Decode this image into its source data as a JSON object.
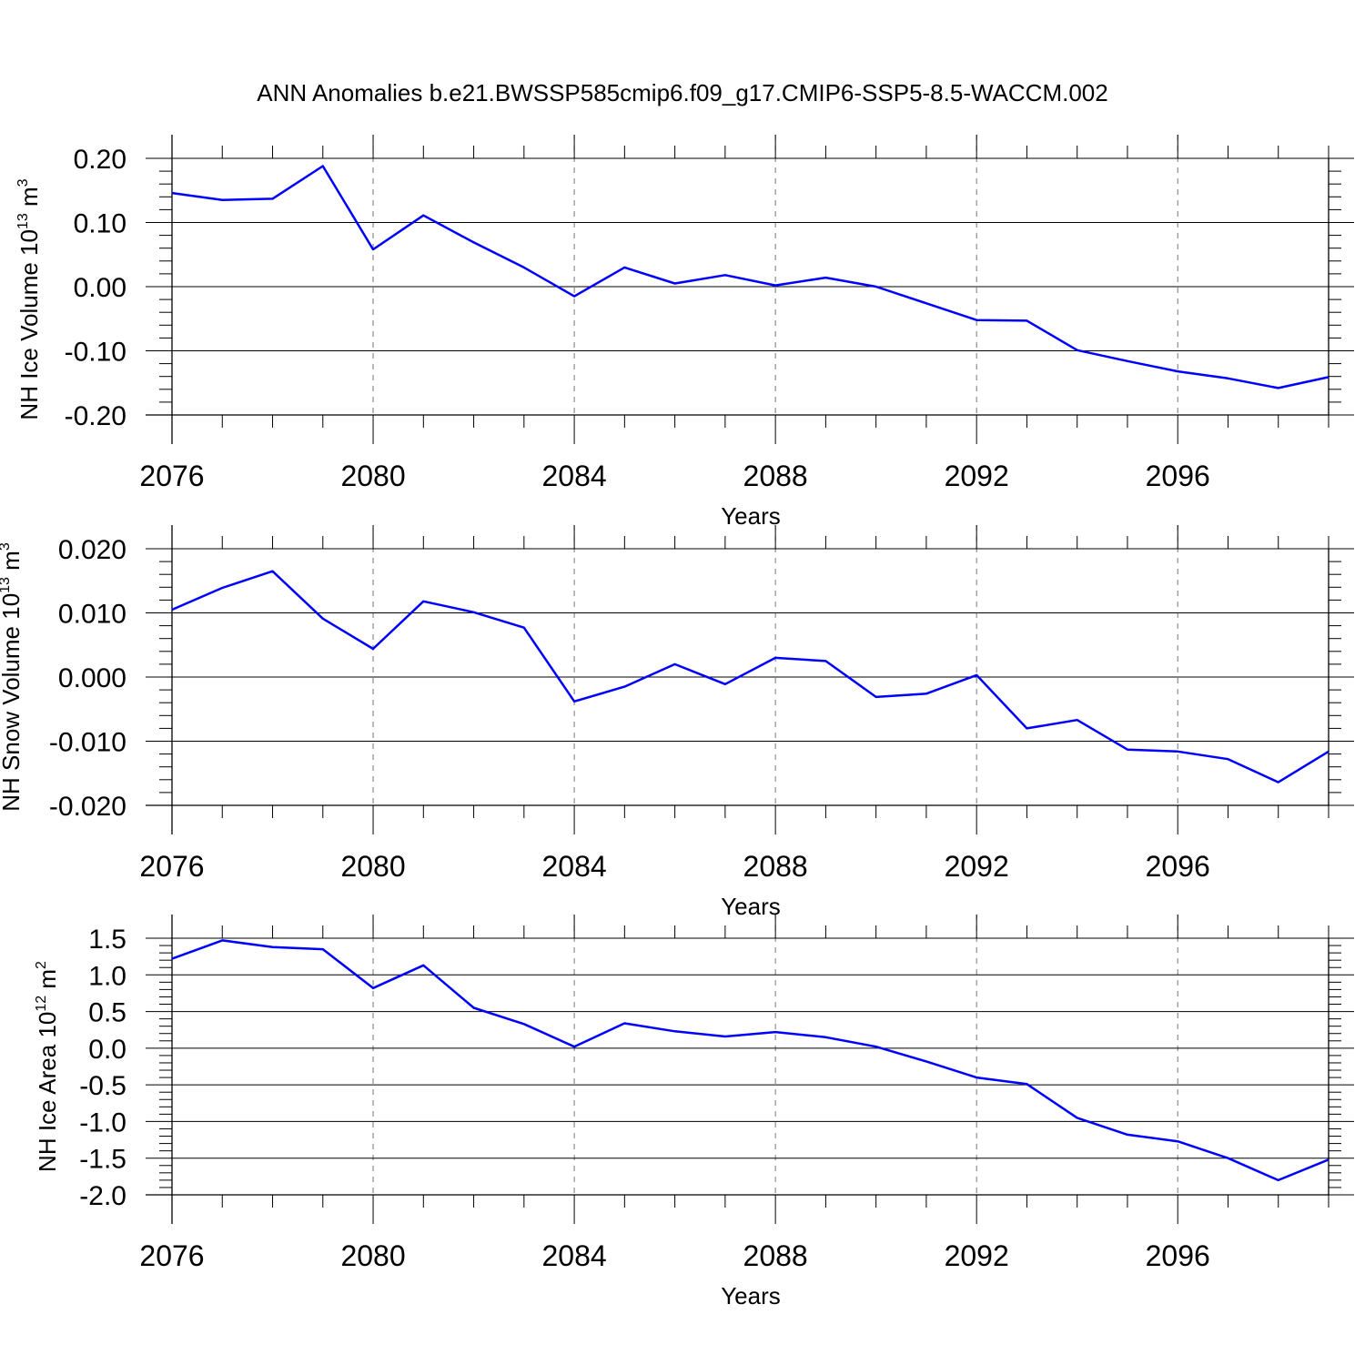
{
  "title": "ANN Anomalies b.e21.BWSSP585cmip6.f09_g17.CMIP6-SSP5-8.5-WACCM.002",
  "line_color": "#0000ff",
  "chart_data": [
    {
      "type": "line",
      "ylabel": "NH Ice Volume 10",
      "ylabel_exp": "13",
      "ylabel_unit": " m",
      "ylabel_unit_exp": "3",
      "xlabel": "Years",
      "xlim": [
        2076,
        2099
      ],
      "ylim": [
        -0.2,
        0.2
      ],
      "yticks": [
        0.2,
        0.1,
        0.0,
        -0.1,
        -0.2
      ],
      "ytick_labels": [
        "0.20",
        "0.10",
        "0.00",
        "-0.10",
        "-0.20"
      ],
      "xticks": [
        2076,
        2080,
        2084,
        2088,
        2092,
        2096
      ],
      "xtick_labels": [
        "2076",
        "2080",
        "2084",
        "2088",
        "2092",
        "2096"
      ],
      "grid": "vertical dashed at major x ticks",
      "series": [
        {
          "x": [
            2076,
            2077,
            2078,
            2079,
            2080,
            2081,
            2082,
            2083,
            2084,
            2085,
            2086,
            2087,
            2088,
            2089,
            2090,
            2091,
            2092,
            2093,
            2094,
            2095,
            2096,
            2097,
            2098,
            2099
          ],
          "values": [
            0.146,
            0.135,
            0.137,
            0.188,
            0.058,
            0.111,
            0.069,
            0.03,
            -0.015,
            0.03,
            0.005,
            0.018,
            0.002,
            0.014,
            0.0,
            -0.026,
            -0.052,
            -0.053,
            -0.099,
            -0.116,
            -0.132,
            -0.143,
            -0.158,
            -0.141
          ]
        }
      ]
    },
    {
      "type": "line",
      "ylabel": "NH Snow Volume 10",
      "ylabel_exp": "13",
      "ylabel_unit": " m",
      "ylabel_unit_exp": "3",
      "xlabel": "Years",
      "xlim": [
        2076,
        2099
      ],
      "ylim": [
        -0.02,
        0.02
      ],
      "yticks": [
        0.02,
        0.01,
        0.0,
        -0.01,
        -0.02
      ],
      "ytick_labels": [
        "0.020",
        "0.010",
        "0.000",
        "-0.010",
        "-0.020"
      ],
      "xticks": [
        2076,
        2080,
        2084,
        2088,
        2092,
        2096
      ],
      "xtick_labels": [
        "2076",
        "2080",
        "2084",
        "2088",
        "2092",
        "2096"
      ],
      "grid": "vertical dashed at major x ticks",
      "series": [
        {
          "x": [
            2076,
            2077,
            2078,
            2079,
            2080,
            2081,
            2082,
            2083,
            2084,
            2085,
            2086,
            2087,
            2088,
            2089,
            2090,
            2091,
            2092,
            2093,
            2094,
            2095,
            2096,
            2097,
            2098,
            2099
          ],
          "values": [
            0.0105,
            0.0139,
            0.0165,
            0.0091,
            0.0044,
            0.0118,
            0.0101,
            0.0077,
            -0.0038,
            -0.0015,
            0.002,
            -0.0011,
            0.003,
            0.0025,
            -0.0031,
            -0.0026,
            0.0003,
            -0.008,
            -0.0067,
            -0.0113,
            -0.0116,
            -0.0128,
            -0.0164,
            -0.0116
          ]
        }
      ]
    },
    {
      "type": "line",
      "ylabel": "NH Ice Area 10",
      "ylabel_exp": "12",
      "ylabel_unit": " m",
      "ylabel_unit_exp": "2",
      "xlabel": "Years",
      "xlim": [
        2076,
        2099
      ],
      "ylim": [
        -2.0,
        1.5
      ],
      "yticks": [
        1.5,
        1.0,
        0.5,
        0.0,
        -0.5,
        -1.0,
        -1.5,
        -2.0
      ],
      "ytick_labels": [
        "1.5",
        "1.0",
        "0.5",
        "0.0",
        "-0.5",
        "-1.0",
        "-1.5",
        "-2.0"
      ],
      "xticks": [
        2076,
        2080,
        2084,
        2088,
        2092,
        2096
      ],
      "xtick_labels": [
        "2076",
        "2080",
        "2084",
        "2088",
        "2092",
        "2096"
      ],
      "grid": "vertical dashed at major x ticks",
      "series": [
        {
          "x": [
            2076,
            2077,
            2078,
            2079,
            2080,
            2081,
            2082,
            2083,
            2084,
            2085,
            2086,
            2087,
            2088,
            2089,
            2090,
            2091,
            2092,
            2093,
            2094,
            2095,
            2096,
            2097,
            2098,
            2099
          ],
          "values": [
            1.22,
            1.47,
            1.38,
            1.35,
            0.82,
            1.13,
            0.55,
            0.33,
            0.02,
            0.34,
            0.23,
            0.16,
            0.22,
            0.15,
            0.02,
            -0.18,
            -0.4,
            -0.49,
            -0.95,
            -1.18,
            -1.27,
            -1.5,
            -1.8,
            -1.52
          ]
        }
      ]
    }
  ]
}
